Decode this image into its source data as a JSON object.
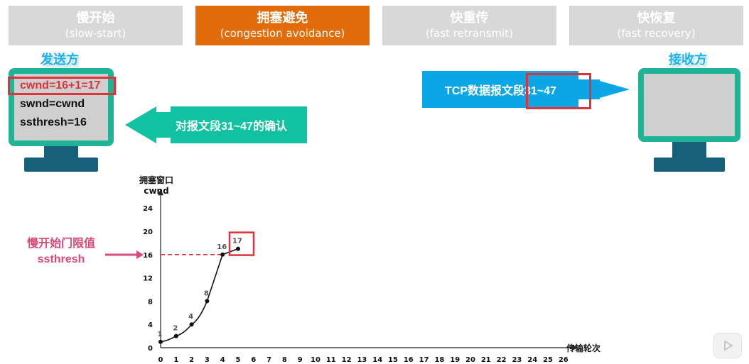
{
  "tabs": [
    {
      "title": "慢开始",
      "subtitle": "(slow-start)",
      "active": false
    },
    {
      "title": "拥塞避免",
      "subtitle": "(congestion avoidance)",
      "active": true
    },
    {
      "title": "快重传",
      "subtitle": "(fast retransmit)",
      "active": false
    },
    {
      "title": "快恢复",
      "subtitle": "(fast recovery)",
      "active": false
    }
  ],
  "sender": {
    "title": "发送方",
    "lines": [
      "cwnd=16+1=17",
      "swnd=cwnd",
      "ssthresh=16"
    ]
  },
  "receiver": {
    "title": "接收方"
  },
  "segment_arrow": {
    "label": "TCP数据报文段31~47"
  },
  "ack_arrow": {
    "label": "对报文段31~47的确认"
  },
  "ssthresh_note": {
    "line1": "慢开始门限值",
    "line2": "ssthresh"
  },
  "colors": {
    "tab_active": "#e26b0a",
    "tab_inactive": "#d8d8d8",
    "arrow_fill": "#0aa6e6",
    "ack_fill": "#11c1a1",
    "monitor_frame": "#1fb496",
    "highlight": "#e0323a",
    "threshold_line": "#e0323a",
    "note_text": "#d94a76"
  },
  "chart_data": {
    "type": "line",
    "ylabel_line1": "拥塞窗口",
    "ylabel_line2": "cwnd",
    "xlabel": "传输轮次",
    "x_ticks": [
      0,
      1,
      2,
      3,
      4,
      5,
      6,
      7,
      8,
      9,
      10,
      11,
      12,
      13,
      14,
      15,
      16,
      17,
      18,
      19,
      20,
      21,
      22,
      23,
      24,
      25,
      26
    ],
    "y_ticks": [
      0,
      4,
      8,
      12,
      16,
      20,
      24
    ],
    "xlim": [
      0,
      26
    ],
    "ylim": [
      0,
      24
    ],
    "series": [
      {
        "x": [
          0,
          1,
          2,
          3,
          4,
          5
        ],
        "y": [
          1,
          2,
          4,
          8,
          16,
          17
        ]
      }
    ],
    "point_labels": [
      "1",
      "2",
      "4",
      "8",
      "16",
      "17"
    ],
    "threshold": 16,
    "highlighted_point": "17"
  }
}
